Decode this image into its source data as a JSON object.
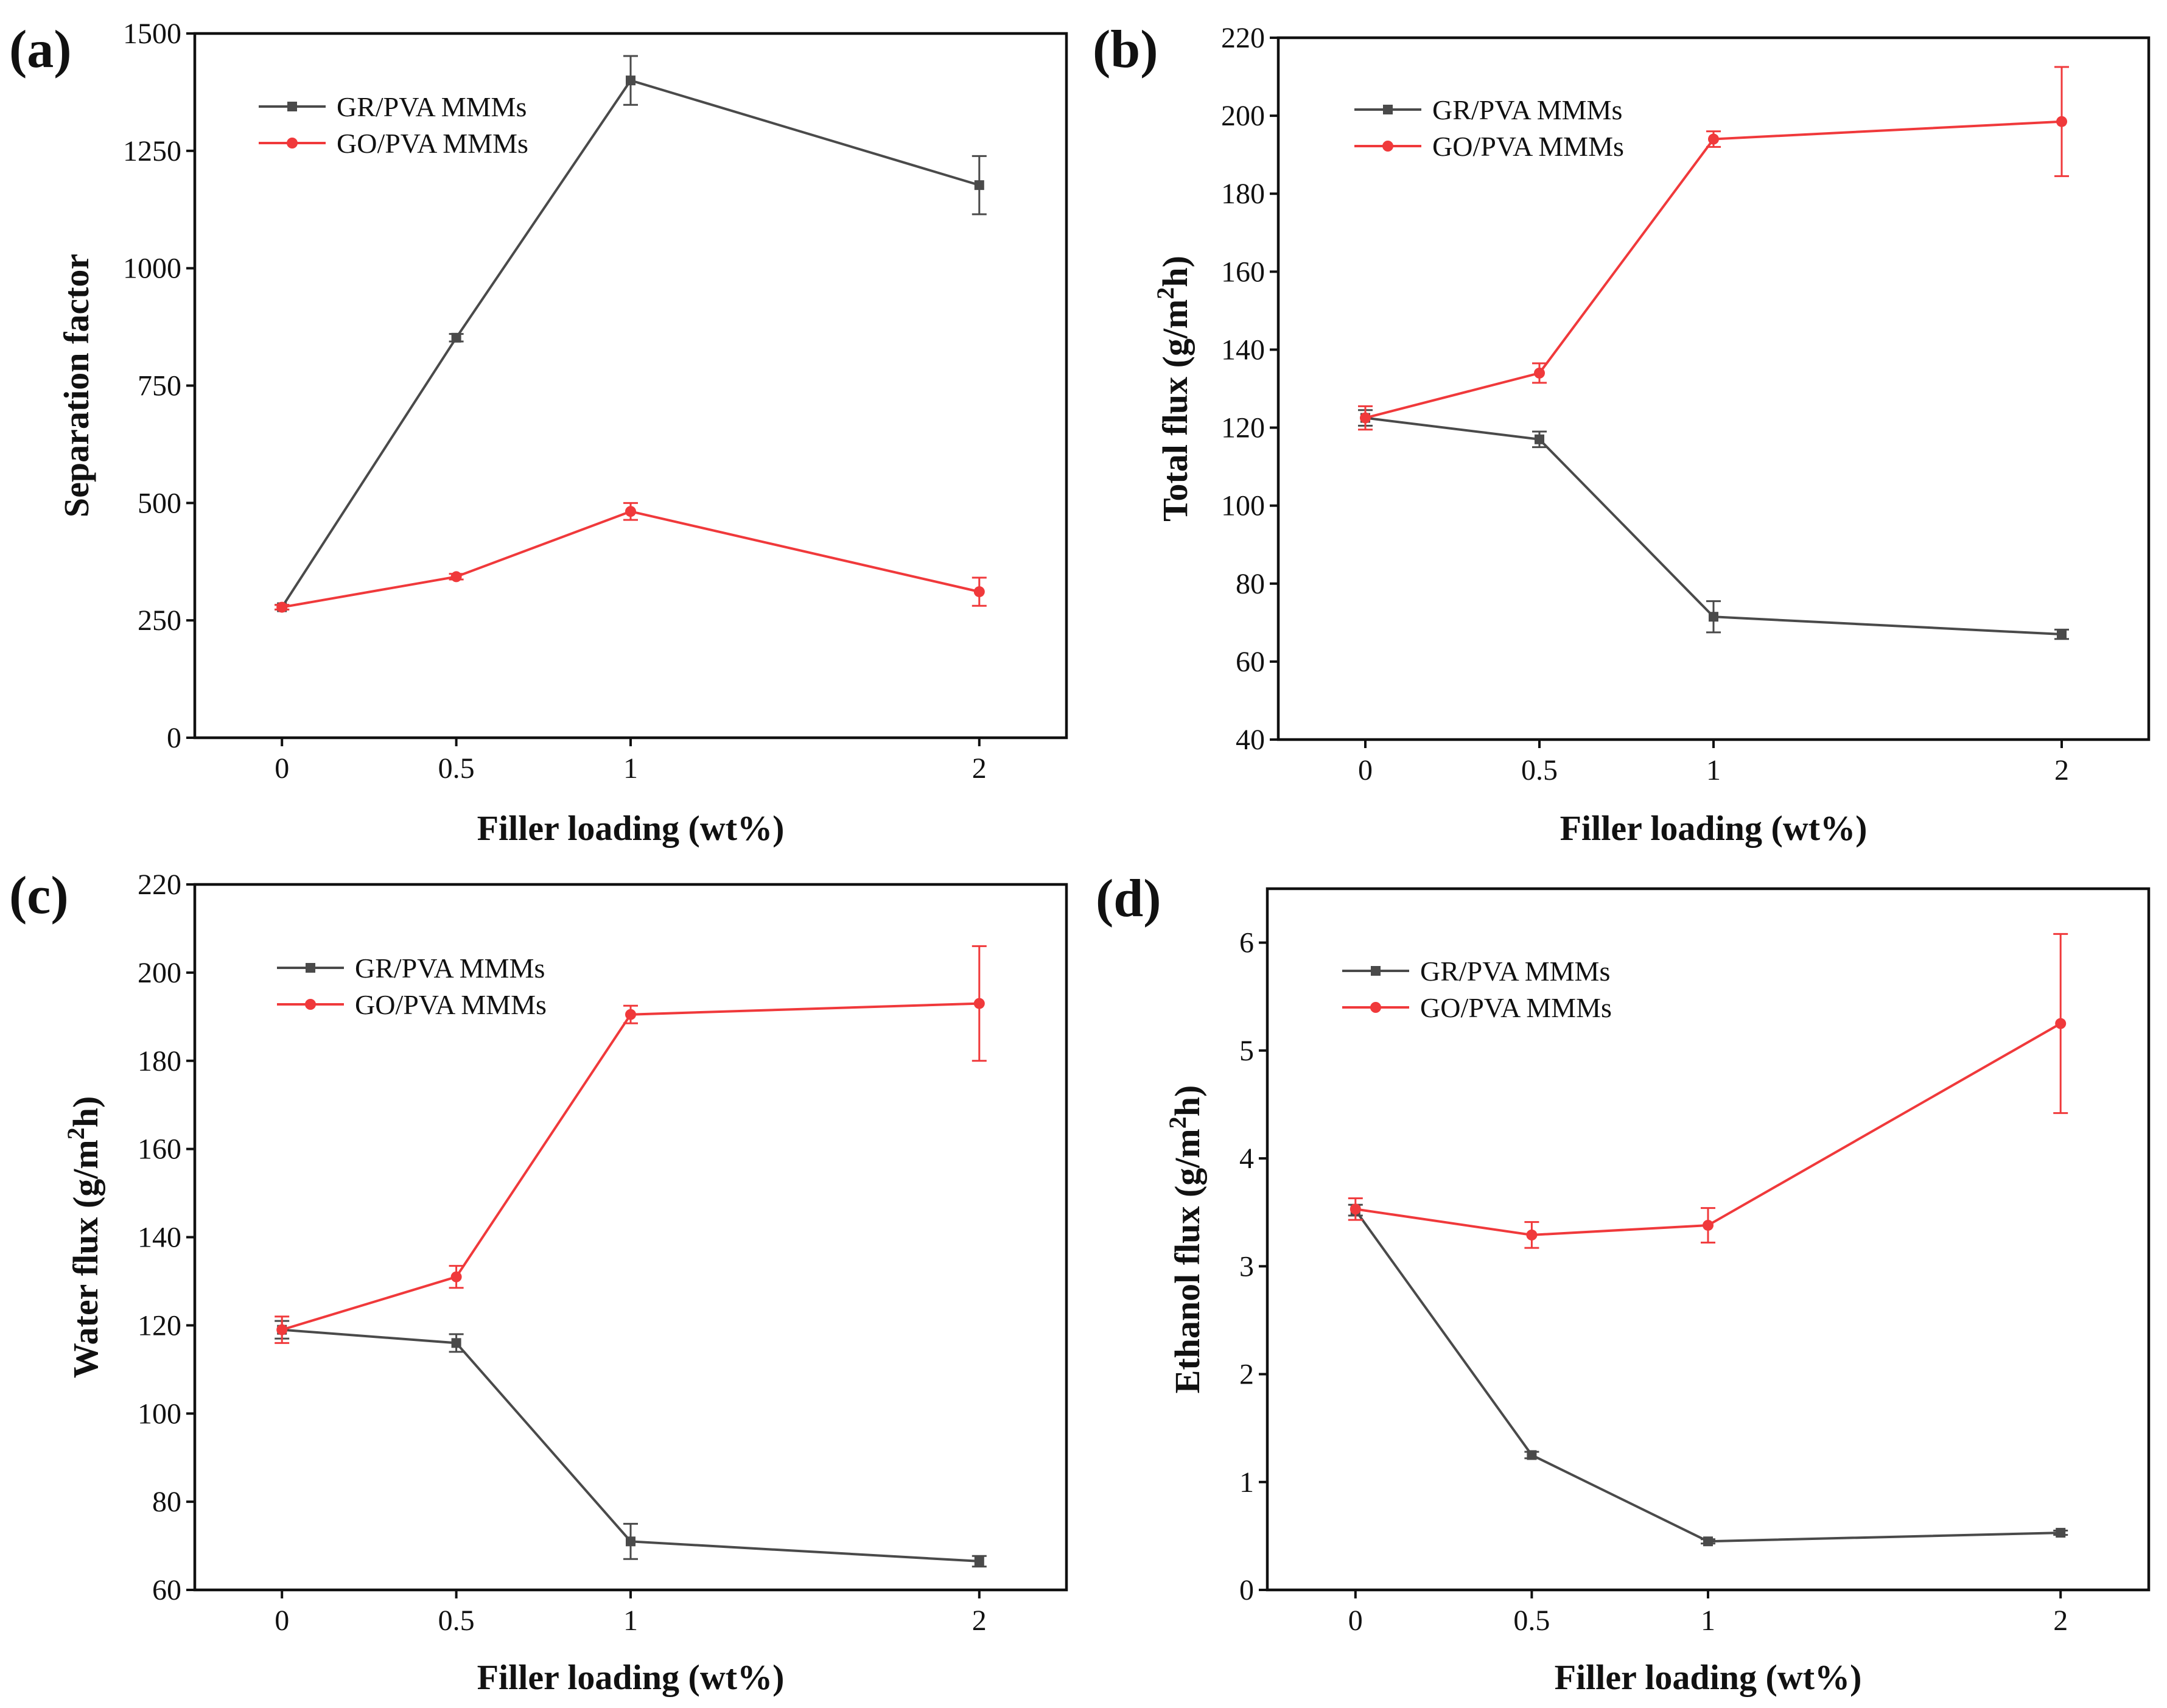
{
  "figure": {
    "colors": {
      "GR": "#4a4a4a",
      "GO": "#f0393b",
      "axis": "#111111"
    }
  },
  "chart_data": [
    {
      "type": "line",
      "panel_label": "(a)",
      "title": "",
      "xlabel": "Filler loading (wt%)",
      "ylabel": "Separation factor",
      "x_positions": [
        0,
        0.5,
        1,
        2
      ],
      "x_tick_labels": [
        "0",
        "0.5",
        "1",
        "2"
      ],
      "xlim": [
        -0.25,
        2.25
      ],
      "ylim": [
        0,
        1500
      ],
      "y_ticks": [
        0,
        250,
        500,
        750,
        1000,
        1250,
        1500
      ],
      "y_tick_labels": [
        "0",
        "250",
        "500",
        "750",
        "1000",
        "1250",
        "1500"
      ],
      "legend_position": "top-left",
      "series": [
        {
          "name": "GR/PVA MMMs",
          "marker": "square",
          "color": "#4a4a4a",
          "values": [
            278,
            852,
            1400,
            1177
          ],
          "errors": [
            5,
            8,
            52,
            62
          ]
        },
        {
          "name": "GO/PVA MMMs",
          "marker": "circle",
          "color": "#f0393b",
          "values": [
            278,
            343,
            482,
            311
          ],
          "errors": [
            5,
            6,
            18,
            30
          ]
        }
      ]
    },
    {
      "type": "line",
      "panel_label": "(b)",
      "title": "",
      "xlabel": "Filler loading (wt%)",
      "ylabel": "Total flux (g/m²h)",
      "ylabel_main": "Total flux (g/m",
      "ylabel_sup": "2",
      "ylabel_end": "h)",
      "x_positions": [
        0,
        0.5,
        1,
        2
      ],
      "x_tick_labels": [
        "0",
        "0.5",
        "1",
        "2"
      ],
      "xlim": [
        -0.25,
        2.25
      ],
      "ylim": [
        40,
        220
      ],
      "y_ticks": [
        40,
        60,
        80,
        100,
        120,
        140,
        160,
        180,
        200,
        220
      ],
      "y_tick_labels": [
        "40",
        "60",
        "80",
        "100",
        "120",
        "140",
        "160",
        "180",
        "200",
        "220"
      ],
      "legend_position": "top-left",
      "series": [
        {
          "name": "GR/PVA MMMs",
          "marker": "square",
          "color": "#4a4a4a",
          "values": [
            122.5,
            117,
            71.5,
            67
          ],
          "errors": [
            2,
            2,
            4,
            1.2
          ]
        },
        {
          "name": "GO/PVA MMMs",
          "marker": "circle",
          "color": "#f0393b",
          "values": [
            122.5,
            134,
            194,
            198.5
          ],
          "errors": [
            3,
            2.5,
            2,
            14
          ]
        }
      ]
    },
    {
      "type": "line",
      "panel_label": "(c)",
      "title": "",
      "xlabel": "Filler loading (wt%)",
      "ylabel": "Water flux (g/m²h)",
      "ylabel_main": "Water flux (g/m",
      "ylabel_sup": "2",
      "ylabel_end": "h)",
      "x_positions": [
        0,
        0.5,
        1,
        2
      ],
      "x_tick_labels": [
        "0",
        "0.5",
        "1",
        "2"
      ],
      "xlim": [
        -0.25,
        2.25
      ],
      "ylim": [
        60,
        220
      ],
      "y_ticks": [
        60,
        80,
        100,
        120,
        140,
        160,
        180,
        200,
        220
      ],
      "y_tick_labels": [
        "60",
        "80",
        "100",
        "120",
        "140",
        "160",
        "180",
        "200",
        "220"
      ],
      "legend_position": "top-left",
      "series": [
        {
          "name": "GR/PVA MMMs",
          "marker": "square",
          "color": "#4a4a4a",
          "values": [
            119,
            116,
            71,
            66.5
          ],
          "errors": [
            2,
            2,
            4,
            1.2
          ]
        },
        {
          "name": "GO/PVA MMMs",
          "marker": "circle",
          "color": "#f0393b",
          "values": [
            119,
            131,
            190.5,
            193
          ],
          "errors": [
            3,
            2.5,
            2,
            13
          ]
        }
      ]
    },
    {
      "type": "line",
      "panel_label": "(d)",
      "title": "",
      "xlabel": "Filler loading (wt%)",
      "ylabel": "Ethanol flux (g/m²h)",
      "ylabel_main": "Ethanol flux (g/m",
      "ylabel_sup": "2",
      "ylabel_end": "h)",
      "x_positions": [
        0,
        0.5,
        1,
        2
      ],
      "x_tick_labels": [
        "0",
        "0.5",
        "1",
        "2"
      ],
      "xlim": [
        -0.25,
        2.25
      ],
      "ylim": [
        0,
        6.5
      ],
      "y_ticks": [
        0,
        1,
        2,
        3,
        4,
        5,
        6
      ],
      "y_tick_labels": [
        "0",
        "1",
        "2",
        "3",
        "4",
        "5",
        "6"
      ],
      "legend_position": "top-left",
      "series": [
        {
          "name": "GR/PVA MMMs",
          "marker": "square",
          "color": "#4a4a4a",
          "values": [
            3.52,
            1.25,
            0.45,
            0.53
          ],
          "errors": [
            0.05,
            0.03,
            0.02,
            0.02
          ]
        },
        {
          "name": "GO/PVA MMMs",
          "marker": "circle",
          "color": "#f0393b",
          "values": [
            3.53,
            3.29,
            3.38,
            5.25
          ],
          "errors": [
            0.1,
            0.12,
            0.16,
            0.83
          ]
        }
      ]
    }
  ]
}
